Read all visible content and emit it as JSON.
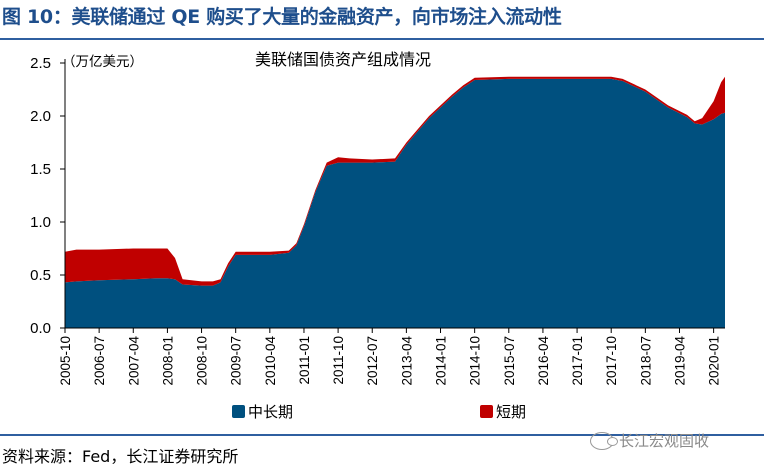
{
  "header": {
    "title": "图 10：美联储通过 QE 购买了大量的金融资产，向市场注入流动性"
  },
  "footer": {
    "source": "资料来源：Fed，长江证券研究所",
    "watermark": "长江宏观固收"
  },
  "colors": {
    "title": "#1e4e8c",
    "rule": "#2f5fa0",
    "long_term": "#00507f",
    "short_term": "#c00000"
  },
  "chart_data": {
    "type": "area",
    "stacked": true,
    "title": "美联储国债资产组成情况",
    "unit_label": "（万亿美元）",
    "xlabel": "",
    "ylabel": "",
    "ylim": [
      0,
      2.5
    ],
    "yticks": [
      "0.0",
      "0.5",
      "1.0",
      "1.5",
      "2.0",
      "2.5"
    ],
    "xticks": [
      "2005-10",
      "2006-07",
      "2007-04",
      "2008-01",
      "2008-10",
      "2009-07",
      "2010-04",
      "2011-01",
      "2011-10",
      "2012-07",
      "2013-04",
      "2014-01",
      "2014-10",
      "2015-07",
      "2016-04",
      "2017-01",
      "2017-10",
      "2018-07",
      "2019-04",
      "2020-01"
    ],
    "legend": {
      "position": "bottom"
    },
    "grid": false,
    "x": [
      "2005-10",
      "2006-01",
      "2006-07",
      "2007-04",
      "2007-10",
      "2008-01",
      "2008-03",
      "2008-05",
      "2008-10",
      "2009-01",
      "2009-03",
      "2009-05",
      "2009-07",
      "2009-10",
      "2010-04",
      "2010-09",
      "2010-11",
      "2011-01",
      "2011-04",
      "2011-07",
      "2011-10",
      "2012-01",
      "2012-07",
      "2013-01",
      "2013-04",
      "2013-10",
      "2014-04",
      "2014-07",
      "2014-10",
      "2015-07",
      "2016-04",
      "2017-01",
      "2017-10",
      "2018-01",
      "2018-07",
      "2019-01",
      "2019-06",
      "2019-08",
      "2019-10",
      "2020-01",
      "2020-03",
      "2020-04"
    ],
    "series": [
      {
        "name": "中长期",
        "color": "#00507f",
        "values": [
          0.43,
          0.44,
          0.45,
          0.46,
          0.47,
          0.47,
          0.46,
          0.41,
          0.4,
          0.4,
          0.43,
          0.58,
          0.69,
          0.69,
          0.69,
          0.71,
          0.78,
          0.96,
          1.28,
          1.53,
          1.56,
          1.56,
          1.56,
          1.57,
          1.73,
          1.98,
          2.18,
          2.27,
          2.34,
          2.35,
          2.35,
          2.35,
          2.35,
          2.33,
          2.23,
          2.08,
          1.99,
          1.93,
          1.92,
          1.97,
          2.02,
          2.03
        ]
      },
      {
        "name": "短期",
        "color": "#c00000",
        "values": [
          0.29,
          0.3,
          0.29,
          0.29,
          0.28,
          0.28,
          0.2,
          0.05,
          0.04,
          0.04,
          0.03,
          0.03,
          0.03,
          0.03,
          0.03,
          0.02,
          0.02,
          0.02,
          0.02,
          0.03,
          0.05,
          0.04,
          0.03,
          0.03,
          0.02,
          0.02,
          0.02,
          0.02,
          0.02,
          0.02,
          0.02,
          0.02,
          0.02,
          0.02,
          0.02,
          0.02,
          0.02,
          0.02,
          0.06,
          0.17,
          0.3,
          0.34
        ]
      }
    ]
  }
}
